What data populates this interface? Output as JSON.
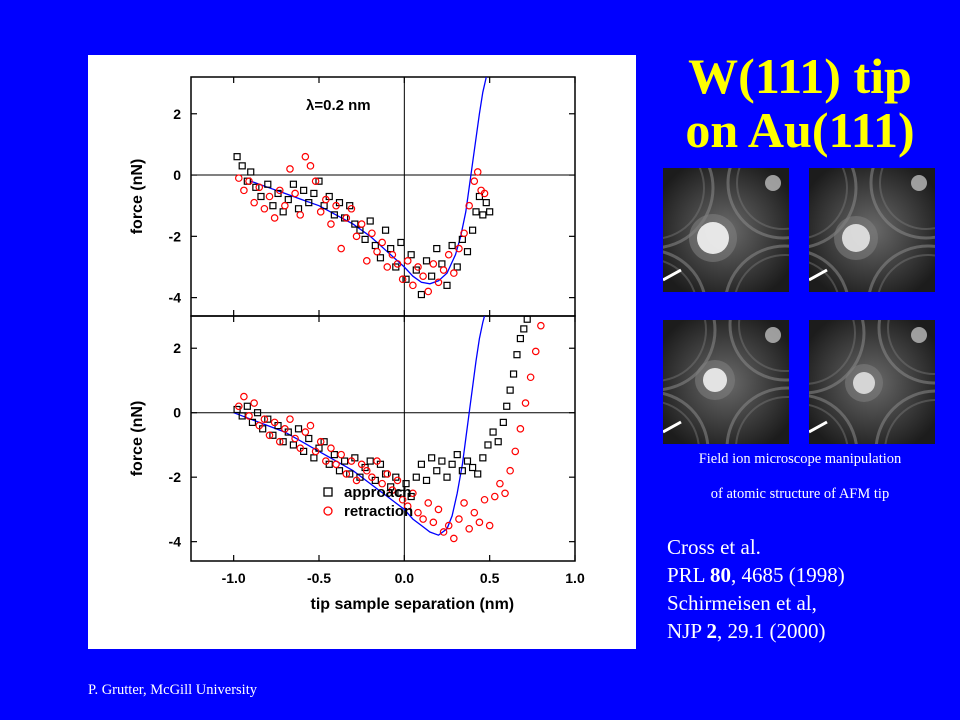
{
  "slide": {
    "title_line1": "W(111) tip",
    "title_line2": "on Au(111)",
    "caption_line1": "Field ion microscope manipulation",
    "caption_line2": "of atomic structure of AFM tip",
    "references": [
      [
        "Cross et al.",
        "",
        ""
      ],
      [
        "PRL ",
        "80",
        ", 4685 (1998)"
      ],
      [
        "Schirmeisen et al,",
        "",
        ""
      ],
      [
        "NJP ",
        "2",
        ", 29.1 (2000)"
      ]
    ],
    "footer": "P. Grutter,  McGill University",
    "colors": {
      "background": "#0000ff",
      "title": "#ffff00",
      "text": "#ffffff",
      "fit": "#0000ff",
      "retraction": "#ff0000",
      "approach": "#000000"
    },
    "fim_images": [
      "fim-image-1",
      "fim-image-2",
      "fim-image-3",
      "fim-image-4"
    ]
  },
  "chart_data": [
    {
      "type": "scatter",
      "annotation": "λ=0.2 nm",
      "ylabel": "force (nN)",
      "xlabel": "",
      "xlim": [
        -1.25,
        1.0
      ],
      "ylim": [
        -4.6,
        3.2
      ],
      "x_ticks": [
        -1.0,
        -0.5,
        0.0,
        0.5,
        1.0
      ],
      "y_ticks": [
        2,
        0,
        -2,
        -4
      ],
      "y_tick_labels": [
        "2",
        "0",
        "-2",
        "-4"
      ],
      "series": [
        {
          "marker": "square",
          "color": "#000000",
          "x": [
            -0.98,
            -0.95,
            -0.92,
            -0.9,
            -0.87,
            -0.84,
            -0.8,
            -0.77,
            -0.74,
            -0.71,
            -0.68,
            -0.65,
            -0.62,
            -0.59,
            -0.56,
            -0.53,
            -0.5,
            -0.47,
            -0.44,
            -0.41,
            -0.38,
            -0.35,
            -0.32,
            -0.29,
            -0.26,
            -0.23,
            -0.2,
            -0.17,
            -0.14,
            -0.11,
            -0.08,
            -0.05,
            -0.02,
            0.01,
            0.04,
            0.07,
            0.1,
            0.13,
            0.16,
            0.19,
            0.22,
            0.25,
            0.28,
            0.31,
            0.34,
            0.37,
            0.4,
            0.42,
            0.44,
            0.46,
            0.48,
            0.5
          ],
          "y": [
            0.6,
            0.3,
            -0.2,
            0.1,
            -0.4,
            -0.7,
            -0.3,
            -1.0,
            -0.6,
            -1.2,
            -0.8,
            -0.3,
            -1.1,
            -0.5,
            -0.9,
            -0.6,
            -0.2,
            -1.0,
            -0.7,
            -1.3,
            -0.9,
            -1.4,
            -1.0,
            -1.6,
            -1.8,
            -2.1,
            -1.5,
            -2.3,
            -2.7,
            -1.8,
            -2.4,
            -3.0,
            -2.2,
            -3.4,
            -2.6,
            -3.1,
            -3.9,
            -2.8,
            -3.3,
            -2.4,
            -2.9,
            -3.6,
            -2.3,
            -3.0,
            -2.1,
            -2.5,
            -1.8,
            -1.2,
            -0.7,
            -1.3,
            -0.9,
            -1.2
          ]
        },
        {
          "marker": "circle",
          "color": "#ff0000",
          "x": [
            -0.97,
            -0.94,
            -0.91,
            -0.88,
            -0.85,
            -0.82,
            -0.79,
            -0.76,
            -0.73,
            -0.7,
            -0.67,
            -0.64,
            -0.61,
            -0.58,
            -0.55,
            -0.52,
            -0.49,
            -0.46,
            -0.43,
            -0.4,
            -0.37,
            -0.34,
            -0.31,
            -0.28,
            -0.25,
            -0.22,
            -0.19,
            -0.16,
            -0.13,
            -0.1,
            -0.07,
            -0.04,
            -0.01,
            0.02,
            0.05,
            0.08,
            0.11,
            0.14,
            0.17,
            0.2,
            0.23,
            0.26,
            0.29,
            0.32,
            0.35,
            0.38,
            0.41,
            0.43,
            0.45,
            0.47
          ],
          "y": [
            -0.1,
            -0.5,
            -0.2,
            -0.9,
            -0.4,
            -1.1,
            -0.7,
            -1.4,
            -0.5,
            -1.0,
            0.2,
            -0.6,
            -1.3,
            0.6,
            0.3,
            -0.2,
            -1.2,
            -0.8,
            -1.6,
            -1.0,
            -2.4,
            -1.4,
            -1.1,
            -2.0,
            -1.6,
            -2.8,
            -1.9,
            -2.5,
            -2.2,
            -3.0,
            -2.6,
            -2.9,
            -3.4,
            -2.8,
            -3.6,
            -3.0,
            -3.3,
            -3.8,
            -2.9,
            -3.5,
            -3.1,
            -2.6,
            -3.2,
            -2.4,
            -1.9,
            -1.0,
            -0.2,
            0.1,
            -0.5,
            -0.6
          ]
        }
      ],
      "fit": {
        "color": "#0000ff",
        "x": [
          -0.9,
          -0.8,
          -0.7,
          -0.6,
          -0.5,
          -0.4,
          -0.3,
          -0.2,
          -0.1,
          0.0,
          0.05,
          0.1,
          0.15,
          0.2,
          0.25,
          0.3,
          0.33,
          0.36,
          0.38,
          0.4,
          0.42,
          0.44,
          0.46,
          0.48
        ],
        "y": [
          -0.2,
          -0.4,
          -0.6,
          -0.8,
          -1.0,
          -1.3,
          -1.6,
          -2.0,
          -2.5,
          -3.0,
          -3.3,
          -3.5,
          -3.55,
          -3.45,
          -3.2,
          -2.6,
          -2.0,
          -1.2,
          -0.4,
          0.4,
          1.2,
          2.0,
          2.7,
          3.2
        ]
      }
    },
    {
      "type": "scatter",
      "annotation": "",
      "ylabel": "force (nN)",
      "xlabel": "tip sample separation (nm)",
      "xlim": [
        -1.25,
        1.0
      ],
      "ylim": [
        -4.6,
        3.0
      ],
      "x_ticks": [
        -1.0,
        -0.5,
        0.0,
        0.5,
        1.0
      ],
      "x_tick_labels": [
        "-1.0",
        "-0.5",
        "0.0",
        "0.5",
        "1.0"
      ],
      "y_ticks": [
        2,
        0,
        -2,
        -4
      ],
      "y_tick_labels": [
        "2",
        "0",
        "-2",
        "-4"
      ],
      "legend": {
        "placement": "bottom-center",
        "entries": [
          "approach",
          "retraction"
        ]
      },
      "series": [
        {
          "name": "approach",
          "marker": "square",
          "color": "#000000",
          "x": [
            -0.98,
            -0.95,
            -0.92,
            -0.89,
            -0.86,
            -0.83,
            -0.8,
            -0.77,
            -0.74,
            -0.71,
            -0.68,
            -0.65,
            -0.62,
            -0.59,
            -0.56,
            -0.53,
            -0.5,
            -0.47,
            -0.44,
            -0.41,
            -0.38,
            -0.35,
            -0.32,
            -0.29,
            -0.26,
            -0.23,
            -0.2,
            -0.17,
            -0.14,
            -0.11,
            -0.08,
            -0.05,
            -0.02,
            0.01,
            0.04,
            0.07,
            0.1,
            0.13,
            0.16,
            0.19,
            0.22,
            0.25,
            0.28,
            0.31,
            0.34,
            0.37,
            0.4,
            0.43,
            0.46,
            0.49,
            0.52,
            0.55,
            0.58,
            0.6,
            0.62,
            0.64,
            0.66,
            0.68,
            0.7,
            0.72
          ],
          "y": [
            0.1,
            -0.1,
            0.2,
            -0.3,
            0.0,
            -0.5,
            -0.2,
            -0.7,
            -0.4,
            -0.9,
            -0.6,
            -1.0,
            -0.5,
            -1.2,
            -0.8,
            -1.4,
            -1.1,
            -0.9,
            -1.6,
            -1.3,
            -1.8,
            -1.5,
            -1.9,
            -1.4,
            -2.0,
            -1.7,
            -1.5,
            -2.1,
            -1.6,
            -1.9,
            -2.3,
            -2.0,
            -2.5,
            -2.2,
            -2.6,
            -2.0,
            -1.6,
            -2.1,
            -1.4,
            -1.8,
            -1.5,
            -2.0,
            -1.6,
            -1.3,
            -1.8,
            -1.5,
            -1.7,
            -1.9,
            -1.4,
            -1.0,
            -0.6,
            -0.9,
            -0.3,
            0.2,
            0.7,
            1.2,
            1.8,
            2.3,
            2.6,
            2.9
          ]
        },
        {
          "name": "retraction",
          "marker": "circle",
          "color": "#ff0000",
          "x": [
            -0.97,
            -0.94,
            -0.91,
            -0.88,
            -0.85,
            -0.82,
            -0.79,
            -0.76,
            -0.73,
            -0.7,
            -0.67,
            -0.64,
            -0.61,
            -0.58,
            -0.55,
            -0.52,
            -0.49,
            -0.46,
            -0.43,
            -0.4,
            -0.37,
            -0.34,
            -0.31,
            -0.28,
            -0.25,
            -0.22,
            -0.19,
            -0.16,
            -0.13,
            -0.1,
            -0.07,
            -0.04,
            -0.01,
            0.02,
            0.05,
            0.08,
            0.11,
            0.14,
            0.17,
            0.2,
            0.23,
            0.26,
            0.29,
            0.32,
            0.35,
            0.38,
            0.41,
            0.44,
            0.47,
            0.5,
            0.53,
            0.56,
            0.59,
            0.62,
            0.65,
            0.68,
            0.71,
            0.74,
            0.77,
            0.8
          ],
          "y": [
            0.2,
            0.5,
            -0.1,
            0.3,
            -0.4,
            -0.2,
            -0.7,
            -0.3,
            -0.9,
            -0.5,
            -0.2,
            -0.8,
            -1.1,
            -0.6,
            -0.4,
            -1.2,
            -0.9,
            -1.5,
            -1.1,
            -1.6,
            -1.3,
            -1.9,
            -1.5,
            -2.1,
            -1.6,
            -1.8,
            -2.0,
            -1.5,
            -2.2,
            -1.9,
            -2.4,
            -2.1,
            -2.7,
            -2.9,
            -2.5,
            -3.1,
            -3.3,
            -2.8,
            -3.4,
            -3.0,
            -3.7,
            -3.5,
            -3.9,
            -3.3,
            -2.8,
            -3.6,
            -3.1,
            -3.4,
            -2.7,
            -3.5,
            -2.6,
            -2.2,
            -2.5,
            -1.8,
            -1.2,
            -0.5,
            0.3,
            1.1,
            1.9,
            2.7
          ]
        }
      ],
      "fit": {
        "color": "#0000ff",
        "x": [
          -1.0,
          -0.9,
          -0.8,
          -0.7,
          -0.6,
          -0.5,
          -0.4,
          -0.3,
          -0.2,
          -0.1,
          0.0,
          0.05,
          0.1,
          0.15,
          0.2,
          0.25,
          0.28,
          0.31,
          0.34,
          0.36,
          0.38,
          0.4,
          0.42,
          0.44,
          0.46,
          0.47
        ],
        "y": [
          0.0,
          -0.2,
          -0.4,
          -0.6,
          -0.9,
          -1.2,
          -1.5,
          -1.8,
          -2.2,
          -2.6,
          -3.0,
          -3.3,
          -3.5,
          -3.7,
          -3.8,
          -3.6,
          -3.2,
          -2.5,
          -1.6,
          -0.8,
          0.0,
          0.8,
          1.6,
          2.3,
          2.8,
          3.0
        ]
      }
    }
  ]
}
